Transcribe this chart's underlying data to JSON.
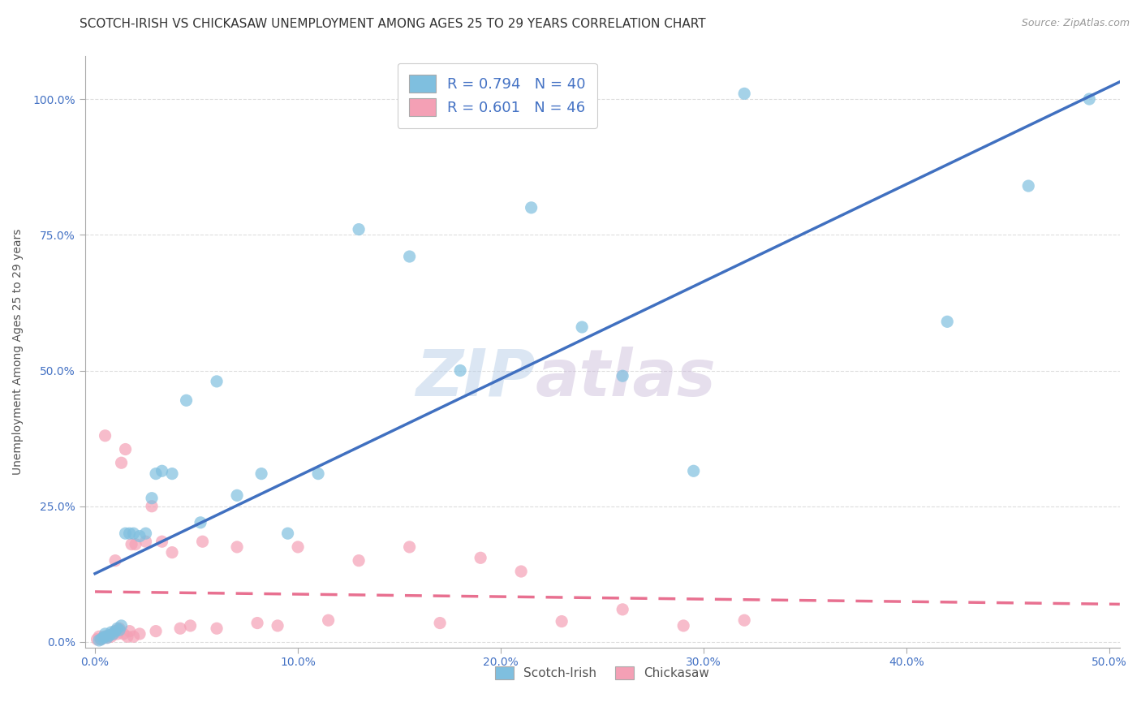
{
  "title": "SCOTCH-IRISH VS CHICKASAW UNEMPLOYMENT AMONG AGES 25 TO 29 YEARS CORRELATION CHART",
  "source": "Source: ZipAtlas.com",
  "ylabel": "Unemployment Among Ages 25 to 29 years",
  "x_ticks": [
    0.0,
    0.1,
    0.2,
    0.3,
    0.4,
    0.5
  ],
  "x_tick_labels": [
    "0.0%",
    "10.0%",
    "20.0%",
    "30.0%",
    "40.0%",
    "50.0%"
  ],
  "y_ticks": [
    0.0,
    0.25,
    0.5,
    0.75,
    1.0
  ],
  "y_tick_labels": [
    "0.0%",
    "25.0%",
    "50.0%",
    "75.0%",
    "100.0%"
  ],
  "xlim": [
    -0.005,
    0.505
  ],
  "ylim": [
    -0.01,
    1.08
  ],
  "scotch_irish_R": 0.794,
  "scotch_irish_N": 40,
  "chickasaw_R": 0.601,
  "chickasaw_N": 46,
  "scotch_irish_color": "#7fbfdf",
  "chickasaw_color": "#f4a0b5",
  "scotch_irish_line_color": "#4070c0",
  "chickasaw_line_color": "#e87090",
  "legend_label_scotch": "Scotch-Irish",
  "legend_label_chickasaw": "Chickasaw",
  "scotch_irish_x": [
    0.002,
    0.003,
    0.004,
    0.005,
    0.005,
    0.006,
    0.007,
    0.008,
    0.009,
    0.01,
    0.011,
    0.012,
    0.013,
    0.015,
    0.017,
    0.019,
    0.022,
    0.025,
    0.028,
    0.03,
    0.033,
    0.038,
    0.045,
    0.052,
    0.06,
    0.07,
    0.082,
    0.095,
    0.11,
    0.13,
    0.155,
    0.18,
    0.215,
    0.24,
    0.26,
    0.295,
    0.32,
    0.42,
    0.46,
    0.49
  ],
  "scotch_irish_y": [
    0.003,
    0.005,
    0.008,
    0.01,
    0.015,
    0.008,
    0.012,
    0.018,
    0.015,
    0.02,
    0.025,
    0.022,
    0.03,
    0.2,
    0.2,
    0.2,
    0.195,
    0.2,
    0.265,
    0.31,
    0.315,
    0.31,
    0.445,
    0.22,
    0.48,
    0.27,
    0.31,
    0.2,
    0.31,
    0.76,
    0.71,
    0.5,
    0.8,
    0.58,
    0.49,
    0.315,
    1.01,
    0.59,
    0.84,
    1.0
  ],
  "chickasaw_x": [
    0.001,
    0.002,
    0.003,
    0.004,
    0.005,
    0.005,
    0.006,
    0.007,
    0.008,
    0.009,
    0.01,
    0.01,
    0.011,
    0.012,
    0.013,
    0.014,
    0.015,
    0.016,
    0.017,
    0.018,
    0.019,
    0.02,
    0.022,
    0.025,
    0.028,
    0.03,
    0.033,
    0.038,
    0.042,
    0.047,
    0.053,
    0.06,
    0.07,
    0.08,
    0.09,
    0.1,
    0.115,
    0.13,
    0.155,
    0.17,
    0.19,
    0.21,
    0.23,
    0.26,
    0.29,
    0.32
  ],
  "chickasaw_y": [
    0.005,
    0.01,
    0.005,
    0.008,
    0.38,
    0.01,
    0.008,
    0.012,
    0.01,
    0.015,
    0.02,
    0.15,
    0.015,
    0.025,
    0.33,
    0.015,
    0.355,
    0.01,
    0.02,
    0.18,
    0.01,
    0.18,
    0.015,
    0.185,
    0.25,
    0.02,
    0.185,
    0.165,
    0.025,
    0.03,
    0.185,
    0.025,
    0.175,
    0.035,
    0.03,
    0.175,
    0.04,
    0.15,
    0.175,
    0.035,
    0.155,
    0.13,
    0.038,
    0.06,
    0.03,
    0.04
  ],
  "watermark_part1": "ZIP",
  "watermark_part2": "atlas",
  "background_color": "#ffffff",
  "grid_color": "#dddddd",
  "title_fontsize": 11,
  "axis_label_fontsize": 10,
  "tick_fontsize": 10,
  "legend_fontsize": 13,
  "marker_size": 120
}
